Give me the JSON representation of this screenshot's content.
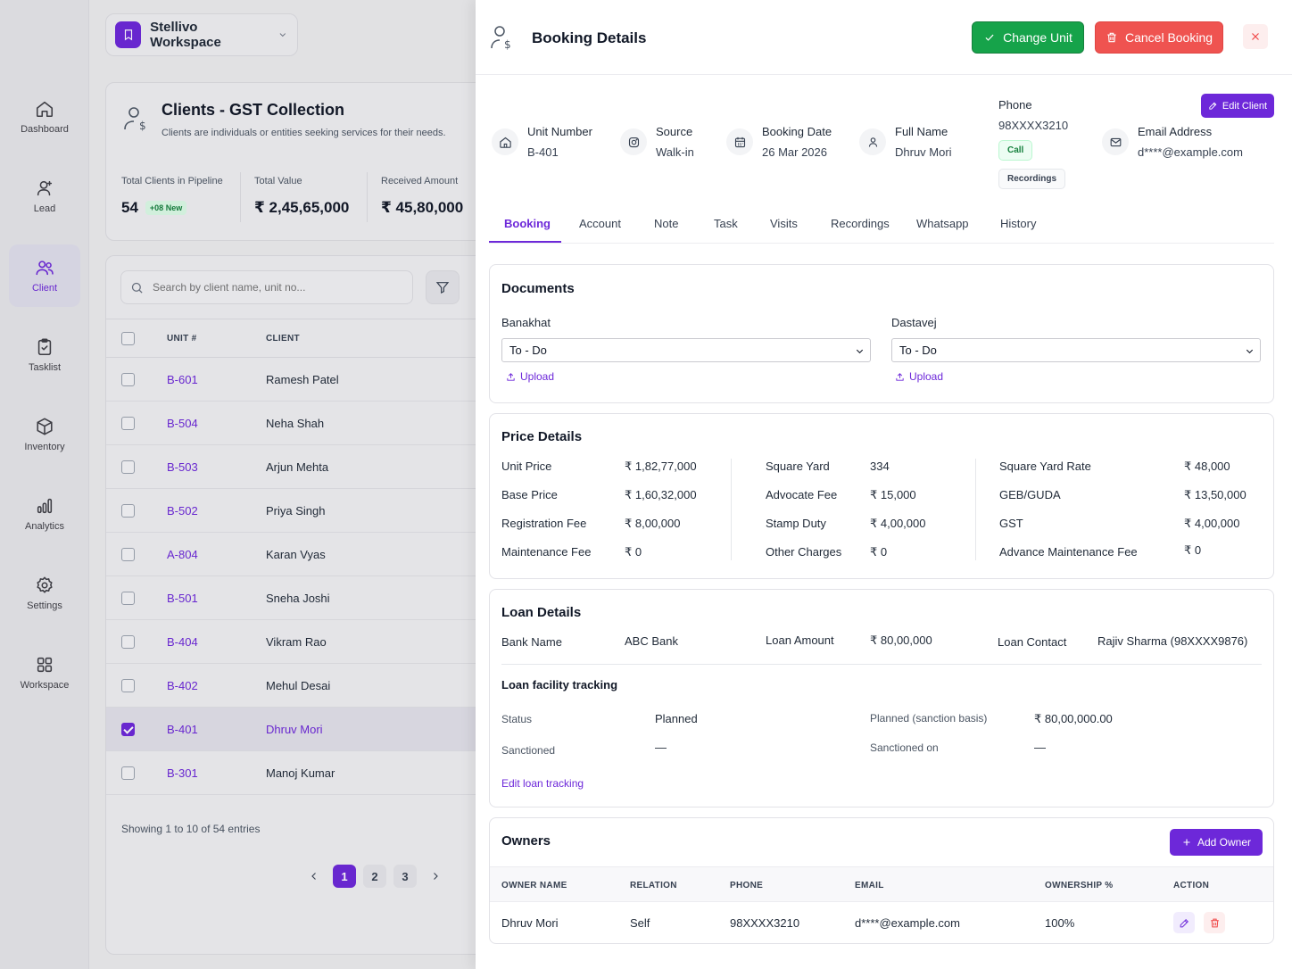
{
  "workspace": {
    "name": "Stellivo Workspace"
  },
  "sidebar": {
    "items": [
      {
        "label": "Dashboard"
      },
      {
        "label": "Lead"
      },
      {
        "label": "Client"
      },
      {
        "label": "Tasklist"
      },
      {
        "label": "Inventory"
      },
      {
        "label": "Analytics"
      },
      {
        "label": "Settings"
      },
      {
        "label": "Workspace"
      }
    ]
  },
  "clients_header": {
    "title": "Clients - GST Collection",
    "subtitle": "Clients are individuals or entities seeking services for their needs.",
    "stats": [
      {
        "label": "Total Clients in Pipeline",
        "value": "54",
        "badge": "+08 New"
      },
      {
        "label": "Total Value",
        "value": "₹ 2,45,65,000"
      },
      {
        "label": "Received Amount",
        "value": "₹ 45,80,000"
      }
    ]
  },
  "client_list": {
    "search_placeholder": "Search by client name, unit no...",
    "columns": [
      "UNIT #",
      "CLIENT"
    ],
    "rows": [
      {
        "unit": "B-601",
        "client": "Ramesh Patel"
      },
      {
        "unit": "B-504",
        "client": "Neha Shah"
      },
      {
        "unit": "B-503",
        "client": "Arjun Mehta"
      },
      {
        "unit": "B-502",
        "client": "Priya Singh"
      },
      {
        "unit": "A-804",
        "client": "Karan Vyas"
      },
      {
        "unit": "B-501",
        "client": "Sneha Joshi"
      },
      {
        "unit": "B-404",
        "client": "Vikram Rao"
      },
      {
        "unit": "B-402",
        "client": "Mehul Desai"
      },
      {
        "unit": "B-401",
        "client": "Dhruv Mori"
      },
      {
        "unit": "B-301",
        "client": "Manoj Kumar"
      }
    ],
    "showing": "Showing 1 to 10 of 54 entries",
    "pages": [
      "1",
      "2",
      "3"
    ]
  },
  "drawer": {
    "title": "Booking Details",
    "change_unit": "Change Unit",
    "cancel_booking": "Cancel Booking",
    "info": {
      "unit_label": "Unit Number",
      "unit_value": "B-401",
      "source_label": "Source",
      "source_value": "Walk-in",
      "date_label": "Booking Date",
      "date_value": "26 Mar 2026",
      "name_label": "Full Name",
      "name_value": "Dhruv Mori",
      "phone_label": "Phone",
      "phone_value": "98XXXX3210",
      "call": "Call",
      "recordings": "Recordings",
      "email_label": "Email Address",
      "email_value": "d****@example.com",
      "edit_client": "Edit Client"
    },
    "tabs": [
      "Booking",
      "Account",
      "Note",
      "Task",
      "Visits",
      "Recordings",
      "Whatsapp",
      "History"
    ],
    "documents": {
      "title": "Documents",
      "items": [
        {
          "label": "Banakhat",
          "value": "To - Do",
          "upload": "Upload"
        },
        {
          "label": "Dastavej",
          "value": "To - Do",
          "upload": "Upload"
        }
      ]
    },
    "price": {
      "title": "Price Details",
      "col1": [
        {
          "label": "Unit Price",
          "value": "₹ 1,82,77,000"
        },
        {
          "label": "Base Price",
          "value": "₹ 1,60,32,000"
        },
        {
          "label": "Registration Fee",
          "value": "₹ 8,00,000"
        },
        {
          "label": "Maintenance Fee",
          "value": "₹ 0"
        }
      ],
      "col2": [
        {
          "label": "Square Yard",
          "value": "334"
        },
        {
          "label": "Advocate Fee",
          "value": "₹ 15,000"
        },
        {
          "label": "Stamp Duty",
          "value": "₹ 4,00,000"
        },
        {
          "label": "Other Charges",
          "value": "₹ 0"
        }
      ],
      "col3": [
        {
          "label": "Square Yard Rate",
          "value": "₹ 48,000"
        },
        {
          "label": "GEB/GUDA",
          "value": "₹ 13,50,000"
        },
        {
          "label": "GST",
          "value": "₹ 4,00,000"
        },
        {
          "label": "Advance Maintenance Fee",
          "value": "₹ 0"
        }
      ]
    },
    "loan": {
      "title": "Loan Details",
      "bank_label": "Bank Name",
      "bank_value": "ABC Bank",
      "amount_label": "Loan Amount",
      "amount_value": "₹ 80,00,000",
      "contact_label": "Loan Contact",
      "contact_value": "Rajiv Sharma (98XXXX9876)",
      "tracking_title": "Loan facility tracking",
      "status_label": "Status",
      "status_value": "Planned",
      "planned_label": "Planned (sanction basis)",
      "planned_value": "₹ 80,00,000.00",
      "sanctioned_label": "Sanctioned",
      "sanctioned_value": "—",
      "sanctioned_on_label": "Sanctioned on",
      "sanctioned_on_value": "—",
      "edit_tracking": "Edit loan tracking"
    },
    "owners": {
      "title": "Owners",
      "add": "Add Owner",
      "columns": [
        "OWNER NAME",
        "RELATION",
        "PHONE",
        "EMAIL",
        "OWNERSHIP %",
        "ACTION"
      ],
      "rows": [
        {
          "name": "Dhruv Mori",
          "relation": "Self",
          "phone": "98XXXX3210",
          "email": "d****@example.com",
          "ownership": "100%"
        }
      ]
    }
  }
}
